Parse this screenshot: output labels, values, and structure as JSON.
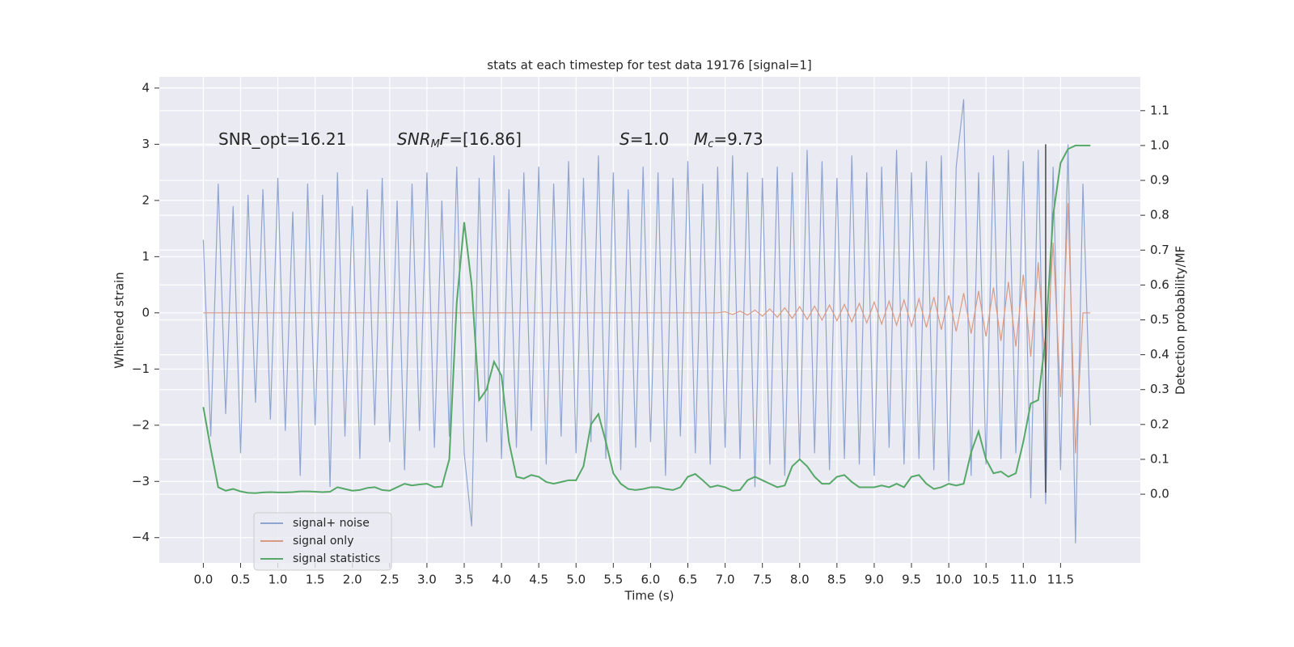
{
  "chart_data": {
    "type": "line",
    "title": "stats at each timestep for test data 19176 [signal=1]",
    "xlabel": "Time (s)",
    "ylabel": "Whitened strain",
    "y2label": "Detection probability/MF",
    "annotations": [
      [
        {
          "text": "SNR_opt=16.21"
        }
      ],
      [
        {
          "text": "SNR",
          "italic": true
        },
        {
          "text": "M",
          "italic": true,
          "sub": true
        },
        {
          "text": "F",
          "italic": true
        },
        {
          "text": "=[16.86]"
        }
      ],
      [
        {
          "text": "S",
          "italic": true
        },
        {
          "text": "=1.0"
        }
      ],
      [
        {
          "text": "M",
          "italic": true
        },
        {
          "text": "c",
          "italic": true,
          "sub": true
        },
        {
          "text": "=9.73"
        }
      ]
    ],
    "x": [
      0.0,
      0.1,
      0.2,
      0.3,
      0.4,
      0.5,
      0.6,
      0.7,
      0.8,
      0.9,
      1.0,
      1.1,
      1.2,
      1.3,
      1.4,
      1.5,
      1.6,
      1.7,
      1.8,
      1.9,
      2.0,
      2.1,
      2.2,
      2.3,
      2.4,
      2.5,
      2.6,
      2.7,
      2.8,
      2.9,
      3.0,
      3.1,
      3.2,
      3.3,
      3.4,
      3.5,
      3.6,
      3.7,
      3.8,
      3.9,
      4.0,
      4.1,
      4.2,
      4.3,
      4.4,
      4.5,
      4.6,
      4.7,
      4.8,
      4.9,
      5.0,
      5.1,
      5.2,
      5.3,
      5.4,
      5.5,
      5.6,
      5.7,
      5.8,
      5.9,
      6.0,
      6.1,
      6.2,
      6.3,
      6.4,
      6.5,
      6.6,
      6.7,
      6.8,
      6.9,
      7.0,
      7.1,
      7.2,
      7.3,
      7.4,
      7.5,
      7.6,
      7.7,
      7.8,
      7.9,
      8.0,
      8.1,
      8.2,
      8.3,
      8.4,
      8.5,
      8.6,
      8.7,
      8.8,
      8.9,
      9.0,
      9.1,
      9.2,
      9.3,
      9.4,
      9.5,
      9.6,
      9.7,
      9.8,
      9.9,
      10.0,
      10.1,
      10.2,
      10.3,
      10.4,
      10.5,
      10.6,
      10.7,
      10.8,
      10.9,
      11.0,
      11.1,
      11.2,
      11.3,
      11.4,
      11.5,
      11.6,
      11.7,
      11.8,
      11.9
    ],
    "series": [
      {
        "name": "signal+ noise",
        "color": "#8fa5d1",
        "values": [
          1.3,
          -2.2,
          2.3,
          -1.8,
          1.9,
          -2.5,
          2.1,
          -1.6,
          2.2,
          -1.9,
          2.4,
          -2.1,
          1.8,
          -2.9,
          2.3,
          -2.0,
          2.1,
          -3.1,
          2.5,
          -2.2,
          1.9,
          -2.6,
          2.2,
          -2.0,
          2.4,
          -2.3,
          2.0,
          -2.8,
          2.3,
          -2.1,
          2.5,
          -2.4,
          2.0,
          -2.2,
          2.6,
          -2.5,
          -3.8,
          2.4,
          -2.3,
          2.8,
          -2.6,
          2.2,
          -2.4,
          2.5,
          -2.1,
          2.6,
          -2.7,
          2.3,
          -2.2,
          2.7,
          -2.5,
          2.4,
          -2.3,
          2.8,
          -2.6,
          2.5,
          -2.8,
          2.2,
          -2.4,
          2.6,
          -2.3,
          2.5,
          -2.9,
          2.4,
          -2.2,
          2.7,
          -2.5,
          2.3,
          -2.7,
          2.6,
          -2.4,
          2.8,
          -2.6,
          2.5,
          -3.1,
          2.4,
          -2.7,
          2.6,
          -2.9,
          2.5,
          -2.6,
          2.9,
          -2.5,
          2.7,
          -2.8,
          2.4,
          -2.6,
          2.8,
          -2.7,
          2.5,
          -2.9,
          2.6,
          -2.4,
          2.9,
          -2.7,
          2.5,
          -2.6,
          2.7,
          -2.8,
          2.8,
          -3.0,
          2.6,
          3.8,
          -2.9,
          2.5,
          -2.7,
          2.8,
          -2.6,
          2.9,
          -2.5,
          2.7,
          -3.3,
          2.9,
          -3.4,
          2.6,
          -2.8,
          3.0,
          -4.1,
          2.3,
          -2.0
        ]
      },
      {
        "name": "signal only",
        "color": "#d99a83",
        "values": [
          0,
          0,
          0,
          0,
          0,
          0,
          0,
          0,
          0,
          0,
          0,
          0,
          0,
          0,
          0,
          0,
          0,
          0,
          0,
          0,
          0,
          0,
          0,
          0,
          0,
          0,
          0,
          0,
          0,
          0,
          0,
          0,
          0,
          0,
          0,
          0,
          0,
          0,
          0,
          0,
          0,
          0,
          0,
          0,
          0,
          0,
          0,
          0,
          0,
          0,
          0,
          0,
          0,
          0,
          0,
          0,
          0,
          0,
          0,
          0,
          0,
          0,
          0,
          0,
          0,
          0,
          0,
          0,
          0,
          0,
          0.02,
          -0.03,
          0.03,
          -0.04,
          0.05,
          -0.06,
          0.07,
          -0.08,
          0.09,
          -0.1,
          0.11,
          -0.12,
          0.12,
          -0.13,
          0.14,
          -0.14,
          0.15,
          -0.16,
          0.17,
          -0.18,
          0.19,
          -0.2,
          0.21,
          -0.22,
          0.23,
          -0.24,
          0.25,
          -0.26,
          0.28,
          -0.3,
          0.31,
          -0.33,
          0.35,
          -0.37,
          0.39,
          -0.42,
          0.45,
          -0.5,
          0.55,
          -0.6,
          0.68,
          -0.78,
          0.9,
          -1.05,
          1.25,
          -1.5,
          1.95,
          -2.5,
          0,
          0
        ]
      },
      {
        "name": "signal statistics",
        "color": "#55a868",
        "axis": "y2",
        "values": [
          0.25,
          0.13,
          0.02,
          0.01,
          0.015,
          0.008,
          0.004,
          0.003,
          0.005,
          0.006,
          0.005,
          0.005,
          0.006,
          0.008,
          0.008,
          0.007,
          0.006,
          0.007,
          0.02,
          0.015,
          0.01,
          0.012,
          0.018,
          0.02,
          0.012,
          0.01,
          0.02,
          0.03,
          0.025,
          0.028,
          0.03,
          0.02,
          0.022,
          0.1,
          0.55,
          0.78,
          0.6,
          0.27,
          0.3,
          0.38,
          0.34,
          0.15,
          0.05,
          0.045,
          0.055,
          0.05,
          0.035,
          0.03,
          0.035,
          0.04,
          0.04,
          0.08,
          0.2,
          0.23,
          0.15,
          0.06,
          0.03,
          0.015,
          0.012,
          0.015,
          0.02,
          0.02,
          0.015,
          0.012,
          0.02,
          0.05,
          0.058,
          0.04,
          0.02,
          0.025,
          0.02,
          0.01,
          0.012,
          0.04,
          0.05,
          0.04,
          0.03,
          0.02,
          0.025,
          0.08,
          0.1,
          0.08,
          0.05,
          0.03,
          0.03,
          0.05,
          0.055,
          0.035,
          0.02,
          0.02,
          0.02,
          0.025,
          0.02,
          0.03,
          0.02,
          0.05,
          0.055,
          0.03,
          0.015,
          0.02,
          0.03,
          0.025,
          0.03,
          0.12,
          0.18,
          0.1,
          0.06,
          0.065,
          0.05,
          0.06,
          0.15,
          0.26,
          0.27,
          0.45,
          0.8,
          0.95,
          0.99,
          1.0,
          1.0,
          1.0
        ]
      }
    ],
    "vline": {
      "x": 11.3,
      "y": [
        3.0,
        -3.2
      ],
      "color": "#444444"
    },
    "xlim": [
      -0.59,
      12.57
    ],
    "xticks": [
      {
        "value": 0,
        "label": "0.0"
      },
      0.5,
      {
        "value": 1,
        "label": "1.0"
      },
      1.5,
      {
        "value": 2,
        "label": "2.0"
      },
      2.5,
      {
        "value": 3,
        "label": "3.0"
      },
      3.5,
      {
        "value": 4,
        "label": "4.0"
      },
      4.5,
      {
        "value": 5,
        "label": "5.0"
      },
      5.5,
      {
        "value": 6,
        "label": "6.0"
      },
      6.5,
      {
        "value": 7,
        "label": "7.0"
      },
      7.5,
      {
        "value": 8,
        "label": "8.0"
      },
      8.5,
      {
        "value": 9,
        "label": "9.0"
      },
      9.5,
      {
        "value": 10,
        "label": "10.0"
      },
      10.5,
      {
        "value": 11,
        "label": "11.0"
      },
      11.5
    ],
    "ylim": [
      -4.45,
      4.2
    ],
    "yticks": [
      {
        "value": -4,
        "label": "−4"
      },
      {
        "value": -3,
        "label": "−3"
      },
      {
        "value": -2,
        "label": "−2"
      },
      {
        "value": -1,
        "label": "−1"
      },
      0,
      1,
      2,
      3,
      4
    ],
    "y2lim": [
      -0.197,
      1.197
    ],
    "y2ticks": [
      {
        "value": 0,
        "label": "0.0"
      },
      0.1,
      0.2,
      0.3,
      0.4,
      0.5,
      0.6,
      0.7,
      0.8,
      0.9,
      {
        "value": 1,
        "label": "1.0"
      },
      1.1
    ],
    "grid": true,
    "legend": "lower left"
  }
}
